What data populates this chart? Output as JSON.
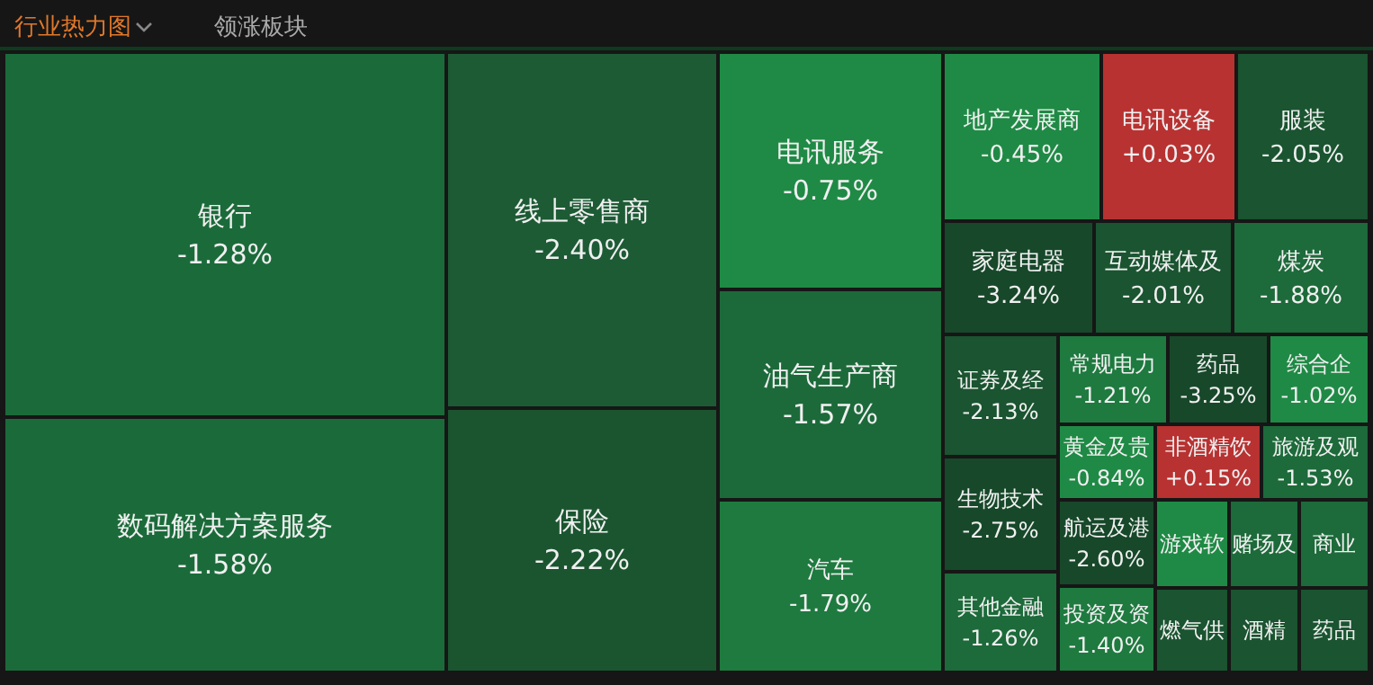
{
  "chart_data": {
    "type": "other",
    "title": "行业热力图",
    "subtitle": "领涨板块",
    "categories": [
      "银行",
      "数码解决方案服务",
      "线上零售商",
      "保险",
      "电讯服务",
      "油气生产商",
      "汽车",
      "地产发展商",
      "电讯设备",
      "服装",
      "家庭电器",
      "互动媒体及",
      "煤炭",
      "证券及经",
      "生物技术",
      "其他金融",
      "常规电力",
      "药品",
      "综合企",
      "黄金及贵",
      "非酒精饮",
      "旅游及观",
      "航运及港",
      "投资及资",
      "游戏软",
      "赌场及",
      "商业",
      "燃气供",
      "酒精",
      "药品"
    ],
    "values": [
      -1.28,
      -1.58,
      -2.4,
      -2.22,
      -0.75,
      -1.57,
      -1.79,
      -0.45,
      0.03,
      -2.05,
      -3.24,
      -2.01,
      -1.88,
      -2.13,
      -2.75,
      -1.26,
      -1.21,
      -3.25,
      -1.02,
      -0.84,
      0.15,
      -1.53,
      -2.6,
      -1.4,
      null,
      null,
      null,
      null,
      null,
      null
    ],
    "value_labels": [
      "-1.28%",
      "-1.58%",
      "-2.40%",
      "-2.22%",
      "-0.75%",
      "-1.57%",
      "-1.79%",
      "-0.45%",
      "+0.03%",
      "-2.05%",
      "-3.24%",
      "-2.01%",
      "-1.88%",
      "-2.13%",
      "-2.75%",
      "-1.26%",
      "-1.21%",
      "-3.25%",
      "-1.02%",
      "-0.84%",
      "+0.15%",
      "-1.53%",
      "-2.60%",
      "-1.40%",
      null,
      null,
      null,
      null,
      null,
      null
    ],
    "colors": [
      "#1b6b3a",
      "#1b6b3a",
      "#1d5b35",
      "#1b5530",
      "#1f8a45",
      "#1c6a3a",
      "#1e7a3f",
      "#1f8a45",
      "#b83232",
      "#1a5430",
      "#17482a",
      "#1a5430",
      "#1d6a3a",
      "#1a5430",
      "#17482a",
      "#1d6a3a",
      "#1e7a3f",
      "#17482a",
      "#1f8a45",
      "#1f8a45",
      "#b83232",
      "#1d6a3a",
      "#17482a",
      "#1e7a3f",
      "#1f8a45",
      "#1d6a3a",
      "#1d6a3a",
      "#1a5430",
      "#1a5430",
      "#1a5430"
    ]
  }
}
